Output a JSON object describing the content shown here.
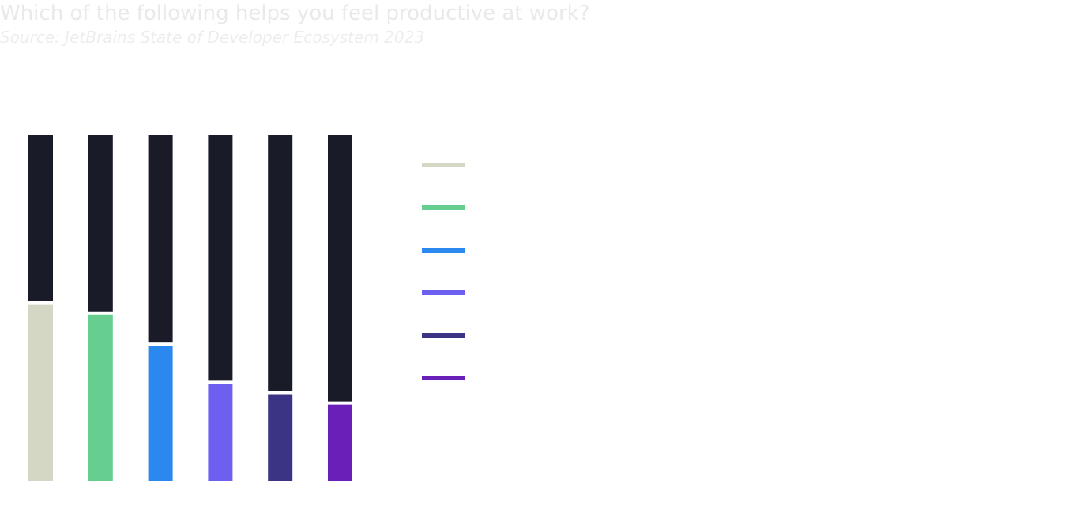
{
  "title": "Which of the following helps you feel productive at work?",
  "subtitle": "Source: JetBrains State of Developer Ecosystem 2023",
  "chart_data": {
    "type": "bar",
    "stacked": true,
    "normalized_to": 100,
    "bar_count": 6,
    "ylim": [
      0,
      100
    ],
    "grid": false,
    "legend_position": "right",
    "categories": [
      "",
      "",
      "",
      "",
      "",
      ""
    ],
    "series": [
      {
        "color": "#d5d7c5",
        "values": [
          51,
          0,
          0,
          0,
          0,
          0
        ]
      },
      {
        "color": "#66cf8f",
        "values": [
          0,
          48,
          0,
          0,
          0,
          0
        ]
      },
      {
        "color": "#2b88ef",
        "values": [
          0,
          0,
          39,
          0,
          0,
          0
        ]
      },
      {
        "color": "#6d5ff0",
        "values": [
          0,
          0,
          0,
          28,
          0,
          0
        ]
      },
      {
        "color": "#3b3485",
        "values": [
          0,
          0,
          0,
          0,
          25,
          0
        ]
      },
      {
        "color": "#6a1fb8",
        "values": [
          0,
          0,
          0,
          0,
          0,
          22
        ]
      }
    ],
    "remainder_color": "#191c28"
  }
}
